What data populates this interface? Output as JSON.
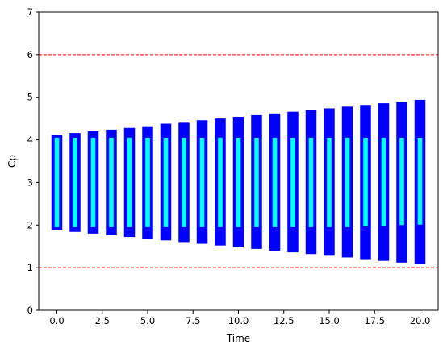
{
  "chart_data": {
    "type": "bar",
    "title": "",
    "xlabel": "Time",
    "ylabel": "Cp",
    "xlim": [
      -1,
      21
    ],
    "ylim": [
      0,
      7
    ],
    "x_ticks": [
      0,
      2.5,
      5,
      7.5,
      10,
      12.5,
      15,
      17.5,
      20
    ],
    "x_tick_labels": [
      "0.0",
      "2.5",
      "5.0",
      "7.5",
      "10.0",
      "12.5",
      "15.0",
      "17.5",
      "20.0"
    ],
    "y_ticks": [
      0,
      1,
      2,
      3,
      4,
      5,
      6,
      7
    ],
    "y_tick_labels": [
      "0",
      "1",
      "2",
      "3",
      "4",
      "5",
      "6",
      "7"
    ],
    "grid": false,
    "x": [
      0,
      1,
      2,
      3,
      4,
      5,
      6,
      7,
      8,
      9,
      10,
      11,
      12,
      13,
      14,
      15,
      16,
      17,
      18,
      19,
      20
    ],
    "series": [
      {
        "color": "#0000ff",
        "low": [
          1.88,
          1.84,
          1.8,
          1.76,
          1.72,
          1.68,
          1.64,
          1.6,
          1.56,
          1.52,
          1.48,
          1.44,
          1.4,
          1.36,
          1.32,
          1.28,
          1.24,
          1.2,
          1.16,
          1.12,
          1.08
        ],
        "high": [
          4.12,
          4.16,
          4.2,
          4.24,
          4.28,
          4.32,
          4.38,
          4.42,
          4.46,
          4.5,
          4.54,
          4.58,
          4.62,
          4.66,
          4.7,
          4.74,
          4.78,
          4.82,
          4.86,
          4.9,
          4.94
        ]
      },
      {
        "color": "#00ffff",
        "low": [
          1.95,
          1.95,
          1.95,
          1.95,
          1.95,
          1.95,
          1.95,
          1.95,
          1.95,
          1.95,
          1.95,
          1.95,
          1.95,
          1.95,
          1.95,
          1.95,
          1.95,
          1.97,
          1.98,
          2.0,
          2.01
        ],
        "high": [
          4.05,
          4.05,
          4.05,
          4.05,
          4.05,
          4.05,
          4.05,
          4.05,
          4.05,
          4.05,
          4.05,
          4.05,
          4.05,
          4.05,
          4.05,
          4.05,
          4.05,
          4.05,
          4.05,
          4.05,
          4.05
        ]
      }
    ],
    "reference_lines": [
      {
        "y": 6,
        "color": "#ff0000",
        "style": "dashed"
      },
      {
        "y": 1,
        "color": "#ff0000",
        "style": "dashed"
      }
    ]
  }
}
